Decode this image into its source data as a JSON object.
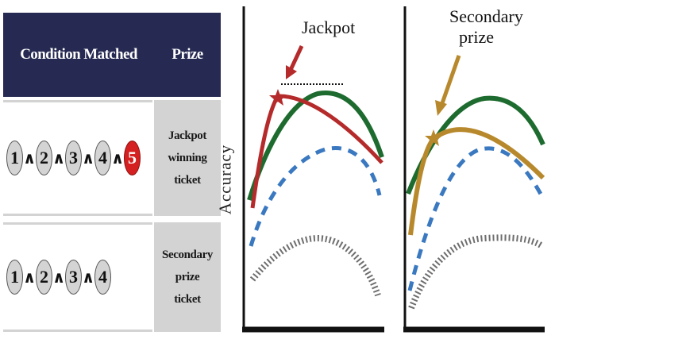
{
  "table": {
    "headers": {
      "condition": "Condition Matched",
      "prize": "Prize"
    },
    "rows": [
      {
        "balls": [
          "1",
          "2",
          "3",
          "4",
          "5"
        ],
        "red_ball_index": 4,
        "prize": "Jackpot\nwinning ticket"
      },
      {
        "balls": [
          "1",
          "2",
          "3",
          "4"
        ],
        "red_ball_index": -1,
        "prize": "Secondary prize\nticket"
      }
    ],
    "and_symbol": "∧",
    "colors": {
      "header_bg": "#262a52",
      "ball": "#d4d4d4",
      "red_ball": "#d42020",
      "prize_bg": "#d3d3d3"
    }
  },
  "charts": {
    "ylabel": "Accuracy",
    "left_annotation": "Jackpot",
    "right_annotation": "Secondary\nprize",
    "colors": {
      "jackpot_curve": "#b52a2a",
      "secondary_curve": "#b8892c",
      "green_curve": "#1e6b2f",
      "blue_dashed": "#3a78c0",
      "gray_dotted": "#6e6e6e"
    }
  }
}
